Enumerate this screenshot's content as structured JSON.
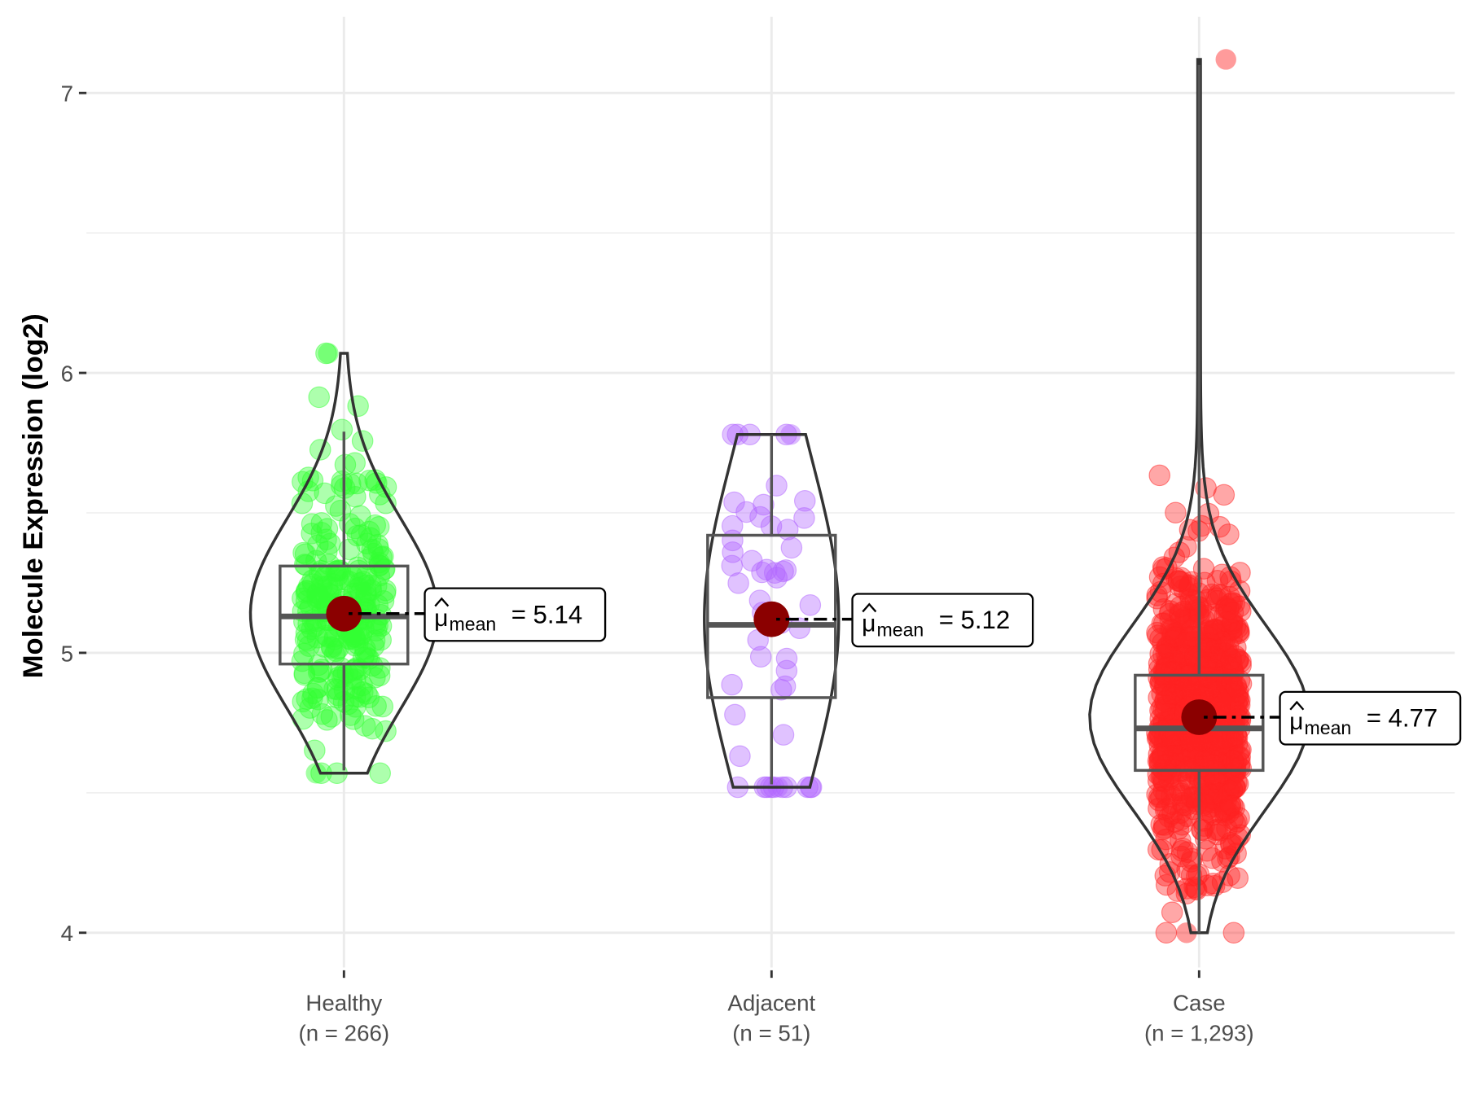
{
  "chart_data": {
    "type": "violin-box-jitter",
    "title": "",
    "xlabel": "",
    "ylabel": "Molecule Expression (log2)",
    "ylim": [
      3.85,
      7.3
    ],
    "yticks": [
      4,
      5,
      6,
      7
    ],
    "grid": true,
    "categories": [
      "Healthy",
      "Adjacent",
      "Case"
    ],
    "groups": [
      {
        "name": "Healthy",
        "n_label": "(n = 266)",
        "n": 266,
        "color": "#33ff33",
        "mean": 5.14,
        "mean_label": "5.14",
        "box": {
          "q1": 4.96,
          "median": 5.13,
          "q3": 5.31,
          "whisker_low": 4.58,
          "whisker_high": 5.79
        },
        "range": [
          4.57,
          6.07
        ]
      },
      {
        "name": "Adjacent",
        "n_label": "(n = 51)",
        "n": 51,
        "color": "#b266ff",
        "mean": 5.12,
        "mean_label": "5.12",
        "box": {
          "q1": 4.84,
          "median": 5.1,
          "q3": 5.42,
          "whisker_low": 4.53,
          "whisker_high": 5.78
        },
        "range": [
          4.52,
          5.78
        ]
      },
      {
        "name": "Case",
        "n_label": "(n = 1,293)",
        "n": 1293,
        "color": "#ff2222",
        "mean": 4.77,
        "mean_label": "4.77",
        "box": {
          "q1": 4.58,
          "median": 4.73,
          "q3": 4.92,
          "whisker_low": 4.0,
          "whisker_high": 7.1
        },
        "range": [
          4.0,
          7.12
        ]
      }
    ],
    "mean_point_color": "#8b0000",
    "annotation_prefix": "mean"
  }
}
